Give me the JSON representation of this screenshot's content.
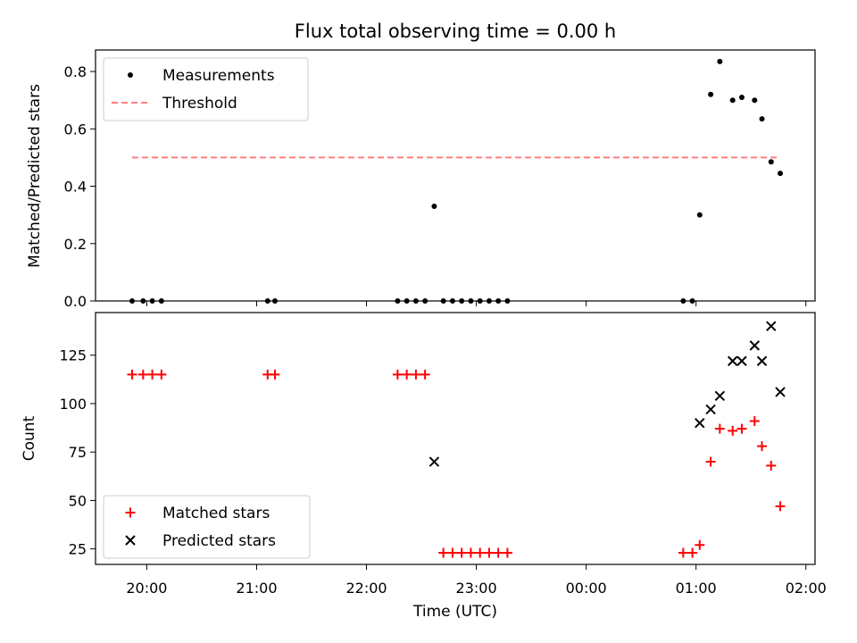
{
  "title": "Flux total observing time = 0.00 h",
  "chart_data": [
    {
      "type": "scatter",
      "ylabel": "Matched/Predicted stars",
      "ylim": [
        0,
        0.875
      ],
      "yticks": [
        "0.0",
        "0.2",
        "0.4",
        "0.6",
        "0.8"
      ],
      "ytick_values": [
        0,
        0.2,
        0.4,
        0.6,
        0.8
      ],
      "legend_position": "upper-left",
      "series": [
        {
          "name": "Measurements",
          "kind": "points",
          "color": "#000000",
          "x": [
            "19:52",
            "19:58",
            "20:03",
            "20:08",
            "21:06",
            "21:10",
            "22:17",
            "22:22",
            "22:27",
            "22:32",
            "22:37",
            "22:42",
            "22:47",
            "22:52",
            "22:57",
            "23:02",
            "23:07",
            "23:12",
            "23:17",
            "00:53",
            "00:58",
            "01:02",
            "01:08",
            "01:13",
            "01:20",
            "01:25",
            "01:32",
            "01:36",
            "01:41",
            "01:46"
          ],
          "y": [
            0,
            0,
            0,
            0,
            0,
            0,
            0,
            0,
            0,
            0,
            0.33,
            0,
            0,
            0,
            0,
            0,
            0,
            0,
            0,
            0,
            0,
            0.3,
            0.72,
            0.835,
            0.7,
            0.71,
            0.7,
            0.635,
            0.485,
            0.445
          ]
        },
        {
          "name": "Threshold",
          "kind": "dashed-line",
          "color": "#ff7f7f",
          "x": [
            "19:52",
            "01:46"
          ],
          "y": [
            0.5,
            0.5
          ]
        }
      ]
    },
    {
      "type": "scatter",
      "ylabel": "Count",
      "xlabel": "Time (UTC)",
      "ylim": [
        17,
        147
      ],
      "yticks": [
        "25",
        "50",
        "75",
        "100",
        "125"
      ],
      "ytick_values": [
        25,
        50,
        75,
        100,
        125
      ],
      "xticks": [
        "20:00",
        "21:00",
        "22:00",
        "23:00",
        "00:00",
        "01:00",
        "02:00"
      ],
      "xrange": [
        "19:32",
        "02:05"
      ],
      "legend_position": "lower-left",
      "series": [
        {
          "name": "Matched stars",
          "marker": "plus",
          "color": "#ff0000",
          "x": [
            "19:52",
            "19:58",
            "20:03",
            "20:08",
            "21:06",
            "21:10",
            "22:17",
            "22:22",
            "22:27",
            "22:32",
            "22:42",
            "22:47",
            "22:52",
            "22:57",
            "23:02",
            "23:07",
            "23:12",
            "23:17",
            "00:53",
            "00:58",
            "01:02",
            "01:08",
            "01:13",
            "01:20",
            "01:25",
            "01:32",
            "01:36",
            "01:41",
            "01:46"
          ],
          "y": [
            115,
            115,
            115,
            115,
            115,
            115,
            115,
            115,
            115,
            115,
            23,
            23,
            23,
            23,
            23,
            23,
            23,
            23,
            23,
            23,
            27,
            70,
            87,
            86,
            87,
            91,
            78,
            68,
            47
          ]
        },
        {
          "name": "Predicted stars",
          "marker": "x",
          "color": "#000000",
          "x": [
            "22:37",
            "01:02",
            "01:08",
            "01:13",
            "01:20",
            "01:25",
            "01:32",
            "01:36",
            "01:41",
            "01:46"
          ],
          "y": [
            70,
            90,
            97,
            104,
            122,
            122,
            130,
            122,
            140,
            106
          ]
        }
      ]
    }
  ]
}
